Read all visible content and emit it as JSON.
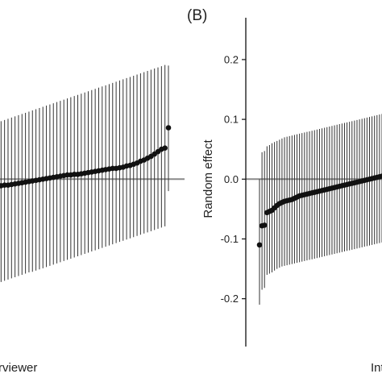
{
  "chart_data": [
    {
      "type": "scatter",
      "panel_label": "",
      "xlabel": "Interviewer",
      "ylabel": "",
      "grid": false,
      "ylim": [
        -0.28,
        0.27
      ],
      "reference_line": 0.0,
      "x": [
        1,
        2,
        3,
        4,
        5,
        6,
        7,
        8,
        9,
        10,
        11,
        12,
        13,
        14,
        15,
        16,
        17,
        18,
        19,
        20,
        21,
        22,
        23,
        24,
        25,
        26,
        27,
        28,
        29,
        30,
        31,
        32,
        33,
        34,
        35,
        36,
        37,
        38,
        39,
        40,
        41,
        42,
        43,
        44,
        45,
        46,
        47,
        48,
        49,
        50
      ],
      "y": [
        -0.012,
        -0.011,
        -0.01,
        -0.01,
        -0.009,
        -0.008,
        -0.007,
        -0.006,
        -0.005,
        -0.004,
        -0.003,
        -0.002,
        -0.001,
        0.0,
        0.001,
        0.002,
        0.003,
        0.004,
        0.005,
        0.006,
        0.007,
        0.007,
        0.008,
        0.008,
        0.009,
        0.01,
        0.011,
        0.012,
        0.013,
        0.014,
        0.015,
        0.016,
        0.017,
        0.018,
        0.018,
        0.019,
        0.02,
        0.022,
        0.023,
        0.025,
        0.027,
        0.03,
        0.032,
        0.035,
        0.038,
        0.042,
        0.046,
        0.05,
        0.052,
        0.086
      ],
      "y_low": [
        -0.175,
        -0.172,
        -0.17,
        -0.168,
        -0.166,
        -0.164,
        -0.162,
        -0.16,
        -0.158,
        -0.156,
        -0.155,
        -0.153,
        -0.151,
        -0.149,
        -0.147,
        -0.145,
        -0.143,
        -0.141,
        -0.139,
        -0.137,
        -0.135,
        -0.133,
        -0.131,
        -0.129,
        -0.127,
        -0.125,
        -0.123,
        -0.121,
        -0.119,
        -0.117,
        -0.115,
        -0.113,
        -0.111,
        -0.109,
        -0.107,
        -0.105,
        -0.103,
        -0.101,
        -0.099,
        -0.097,
        -0.095,
        -0.093,
        -0.091,
        -0.089,
        -0.087,
        -0.085,
        -0.083,
        -0.081,
        -0.079,
        -0.02
      ],
      "y_high": [
        0.095,
        0.097,
        0.099,
        0.101,
        0.103,
        0.105,
        0.107,
        0.109,
        0.111,
        0.113,
        0.115,
        0.117,
        0.119,
        0.121,
        0.123,
        0.125,
        0.127,
        0.129,
        0.131,
        0.133,
        0.135,
        0.137,
        0.139,
        0.141,
        0.143,
        0.145,
        0.147,
        0.149,
        0.151,
        0.153,
        0.155,
        0.157,
        0.159,
        0.161,
        0.163,
        0.165,
        0.167,
        0.169,
        0.171,
        0.173,
        0.175,
        0.177,
        0.179,
        0.181,
        0.183,
        0.185,
        0.187,
        0.189,
        0.191,
        0.19
      ]
    },
    {
      "type": "scatter",
      "panel_label": "(B)",
      "xlabel": "Interviewer",
      "ylabel": "Random effect",
      "grid": false,
      "ylim": [
        -0.28,
        0.27
      ],
      "yticks": [
        0.2,
        0.1,
        0.0,
        -0.1,
        -0.2
      ],
      "ytick_labels": [
        "0.2",
        "0.1",
        "0.0",
        "-0.1",
        "-0.2"
      ],
      "reference_line": 0.0,
      "x": [
        1,
        2,
        3,
        4,
        5,
        6,
        7,
        8,
        9,
        10,
        11,
        12,
        13,
        14,
        15,
        16,
        17,
        18,
        19,
        20,
        21,
        22,
        23,
        24,
        25,
        26,
        27,
        28,
        29,
        30,
        31,
        32,
        33,
        34,
        35,
        36,
        37,
        38,
        39,
        40,
        41,
        42,
        43,
        44,
        45,
        46,
        47,
        48,
        49,
        50
      ],
      "y": [
        -0.11,
        -0.078,
        -0.077,
        -0.056,
        -0.054,
        -0.052,
        -0.048,
        -0.044,
        -0.041,
        -0.039,
        -0.037,
        -0.036,
        -0.035,
        -0.034,
        -0.032,
        -0.03,
        -0.028,
        -0.027,
        -0.026,
        -0.025,
        -0.024,
        -0.023,
        -0.022,
        -0.021,
        -0.02,
        -0.019,
        -0.018,
        -0.017,
        -0.016,
        -0.015,
        -0.014,
        -0.013,
        -0.012,
        -0.011,
        -0.01,
        -0.009,
        -0.008,
        -0.007,
        -0.006,
        -0.005,
        -0.004,
        -0.003,
        -0.002,
        -0.001,
        0.0,
        0.001,
        0.002,
        0.003,
        0.004,
        0.005
      ],
      "y_low": [
        -0.21,
        -0.185,
        -0.182,
        -0.16,
        -0.158,
        -0.156,
        -0.153,
        -0.15,
        -0.148,
        -0.146,
        -0.145,
        -0.144,
        -0.143,
        -0.142,
        -0.141,
        -0.14,
        -0.139,
        -0.138,
        -0.137,
        -0.136,
        -0.135,
        -0.134,
        -0.133,
        -0.132,
        -0.131,
        -0.13,
        -0.129,
        -0.128,
        -0.127,
        -0.126,
        -0.125,
        -0.124,
        -0.123,
        -0.122,
        -0.121,
        -0.12,
        -0.119,
        -0.118,
        -0.117,
        -0.116,
        -0.115,
        -0.114,
        -0.113,
        -0.112,
        -0.111,
        -0.11,
        -0.109,
        -0.108,
        -0.107,
        -0.106
      ],
      "y_high": [
        0.0,
        0.045,
        0.047,
        0.055,
        0.057,
        0.06,
        0.062,
        0.064,
        0.066,
        0.068,
        0.07,
        0.071,
        0.072,
        0.073,
        0.074,
        0.075,
        0.076,
        0.077,
        0.078,
        0.079,
        0.08,
        0.081,
        0.082,
        0.083,
        0.084,
        0.085,
        0.086,
        0.087,
        0.088,
        0.089,
        0.09,
        0.091,
        0.092,
        0.093,
        0.094,
        0.095,
        0.096,
        0.097,
        0.098,
        0.099,
        0.1,
        0.101,
        0.102,
        0.103,
        0.104,
        0.105,
        0.106,
        0.107,
        0.108,
        0.109
      ]
    }
  ]
}
